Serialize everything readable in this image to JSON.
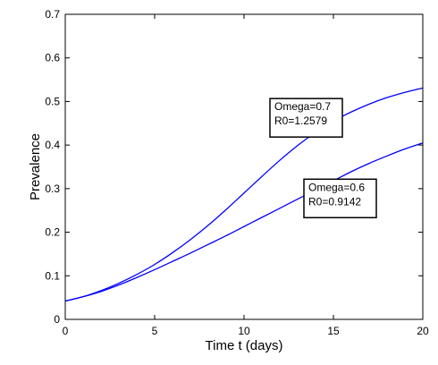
{
  "chart_data": {
    "type": "line",
    "title": "",
    "xlabel": "Time t (days)",
    "ylabel": "Prevalence",
    "xlim": [
      0,
      20
    ],
    "ylim": [
      0,
      0.7
    ],
    "xticks": [
      0,
      5,
      10,
      15,
      20
    ],
    "yticks": [
      0,
      0.1,
      0.2,
      0.3,
      0.4,
      0.5,
      0.6,
      0.7
    ],
    "grid": false,
    "series": [
      {
        "color": "#0000ff",
        "x": [
          0,
          1,
          2,
          3,
          4,
          5,
          6,
          7,
          8,
          9,
          10,
          11,
          12,
          13,
          14,
          15,
          16,
          17,
          18,
          19,
          20
        ],
        "y": [
          0.042,
          0.052,
          0.066,
          0.083,
          0.103,
          0.126,
          0.153,
          0.183,
          0.216,
          0.252,
          0.29,
          0.328,
          0.365,
          0.399,
          0.429,
          0.455,
          0.476,
          0.494,
          0.509,
          0.521,
          0.531
        ]
      },
      {
        "color": "#0000ff",
        "x": [
          0,
          1,
          2,
          3,
          4,
          5,
          6,
          7,
          8,
          9,
          10,
          11,
          12,
          13,
          14,
          15,
          16,
          17,
          18,
          19,
          20
        ],
        "y": [
          0.042,
          0.052,
          0.064,
          0.079,
          0.096,
          0.114,
          0.133,
          0.152,
          0.172,
          0.192,
          0.213,
          0.234,
          0.255,
          0.276,
          0.297,
          0.318,
          0.339,
          0.358,
          0.375,
          0.391,
          0.405
        ]
      }
    ],
    "annotations": [
      {
        "lines": [
          "Omega=0.7",
          "R0=1.2579"
        ],
        "x": 11.7,
        "y": 0.48
      },
      {
        "lines": [
          "Omega=0.6",
          "R0=0.9142"
        ],
        "x": 13.6,
        "y": 0.295
      }
    ]
  }
}
